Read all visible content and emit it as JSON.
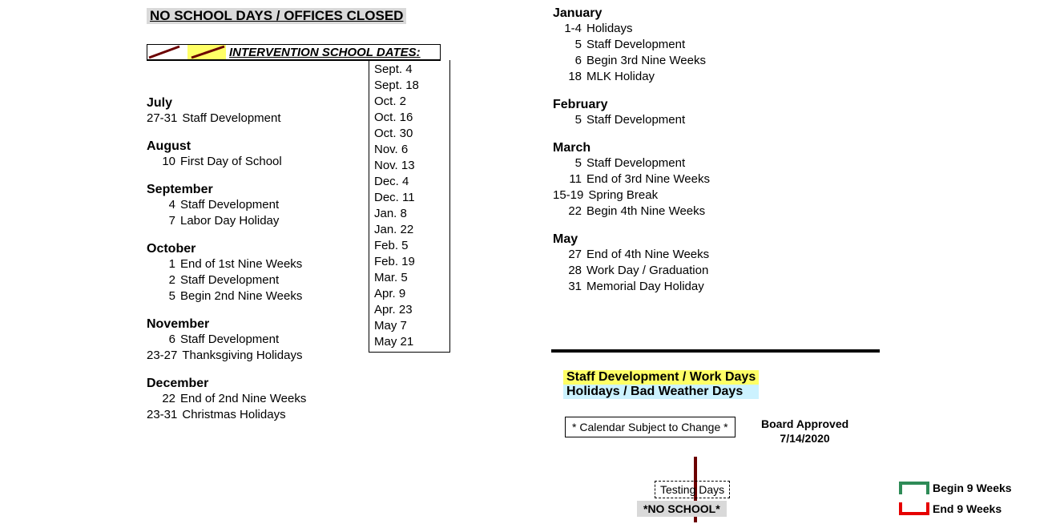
{
  "title": "NO SCHOOL DAYS / OFFICES CLOSED",
  "intervention": {
    "heading": "INTERVENTION SCHOOL DATES:",
    "dates": [
      "Sept. 4",
      "Sept. 18",
      "Oct. 2",
      "Oct. 16",
      "Oct. 30",
      "Nov. 6",
      "Nov. 13",
      "Dec. 4",
      "Dec. 11",
      "Jan. 8",
      "Jan. 22",
      "Feb. 5",
      "Feb. 19",
      "Mar. 5",
      "Apr. 9",
      "Apr. 23",
      "May 7",
      "May 21"
    ]
  },
  "left_months": [
    {
      "name": "July",
      "events": [
        {
          "d": "27-31",
          "t": "Staff Development"
        }
      ]
    },
    {
      "name": "August",
      "events": [
        {
          "d": "10",
          "t": "First Day of School"
        }
      ]
    },
    {
      "name": "September",
      "events": [
        {
          "d": "4",
          "t": "Staff Development"
        },
        {
          "d": "7",
          "t": "Labor Day Holiday"
        }
      ]
    },
    {
      "name": "October",
      "events": [
        {
          "d": "1",
          "t": "End of 1st Nine Weeks"
        },
        {
          "d": "2",
          "t": "Staff Development"
        },
        {
          "d": "5",
          "t": "Begin 2nd Nine Weeks"
        }
      ]
    },
    {
      "name": "November",
      "events": [
        {
          "d": "6",
          "t": "Staff Development"
        },
        {
          "d": "23-27",
          "t": "Thanksgiving Holidays"
        }
      ]
    },
    {
      "name": "December",
      "events": [
        {
          "d": "22",
          "t": "End of 2nd Nine Weeks"
        },
        {
          "d": "23-31",
          "t": "Christmas Holidays"
        }
      ]
    }
  ],
  "right_months": [
    {
      "name": "January",
      "events": [
        {
          "d": "1-4",
          "t": "Holidays"
        },
        {
          "d": "5",
          "t": "Staff Development"
        },
        {
          "d": "6",
          "t": "Begin 3rd Nine Weeks"
        },
        {
          "d": "18",
          "t": "MLK Holiday"
        }
      ]
    },
    {
      "name": "February",
      "events": [
        {
          "d": "5",
          "t": "Staff Development"
        }
      ]
    },
    {
      "name": "March",
      "events": [
        {
          "d": "5",
          "t": "Staff Development"
        },
        {
          "d": "11",
          "t": "End of 3rd Nine Weeks"
        },
        {
          "d": "15-19",
          "t": "Spring Break"
        },
        {
          "d": "22",
          "t": "Begin 4th Nine Weeks"
        }
      ]
    },
    {
      "name": "May",
      "events": [
        {
          "d": "27",
          "t": "End of 4th Nine Weeks"
        },
        {
          "d": "28",
          "t": "Work Day / Graduation"
        },
        {
          "d": "31",
          "t": "Memorial Day Holiday"
        }
      ]
    }
  ],
  "legend": {
    "staff_dev": "Staff Development / Work Days",
    "holidays": "Holidays / Bad Weather Days"
  },
  "subject_to_change": "* Calendar Subject to Change *",
  "approved": {
    "label": "Board Approved",
    "date": "7/14/2020"
  },
  "testing_days": "Testing Days",
  "no_school": "*NO SCHOOL*",
  "weeks": {
    "begin": "Begin 9 Weeks",
    "end": "End 9 Weeks"
  },
  "colors": {
    "title_bg": "#d9d9d9",
    "staff_bg": "#ffff66",
    "holiday_bg": "#ccf2ff",
    "vbar": "#6b0000",
    "begin_border": "#2e8b57",
    "end_border": "#e60000"
  }
}
